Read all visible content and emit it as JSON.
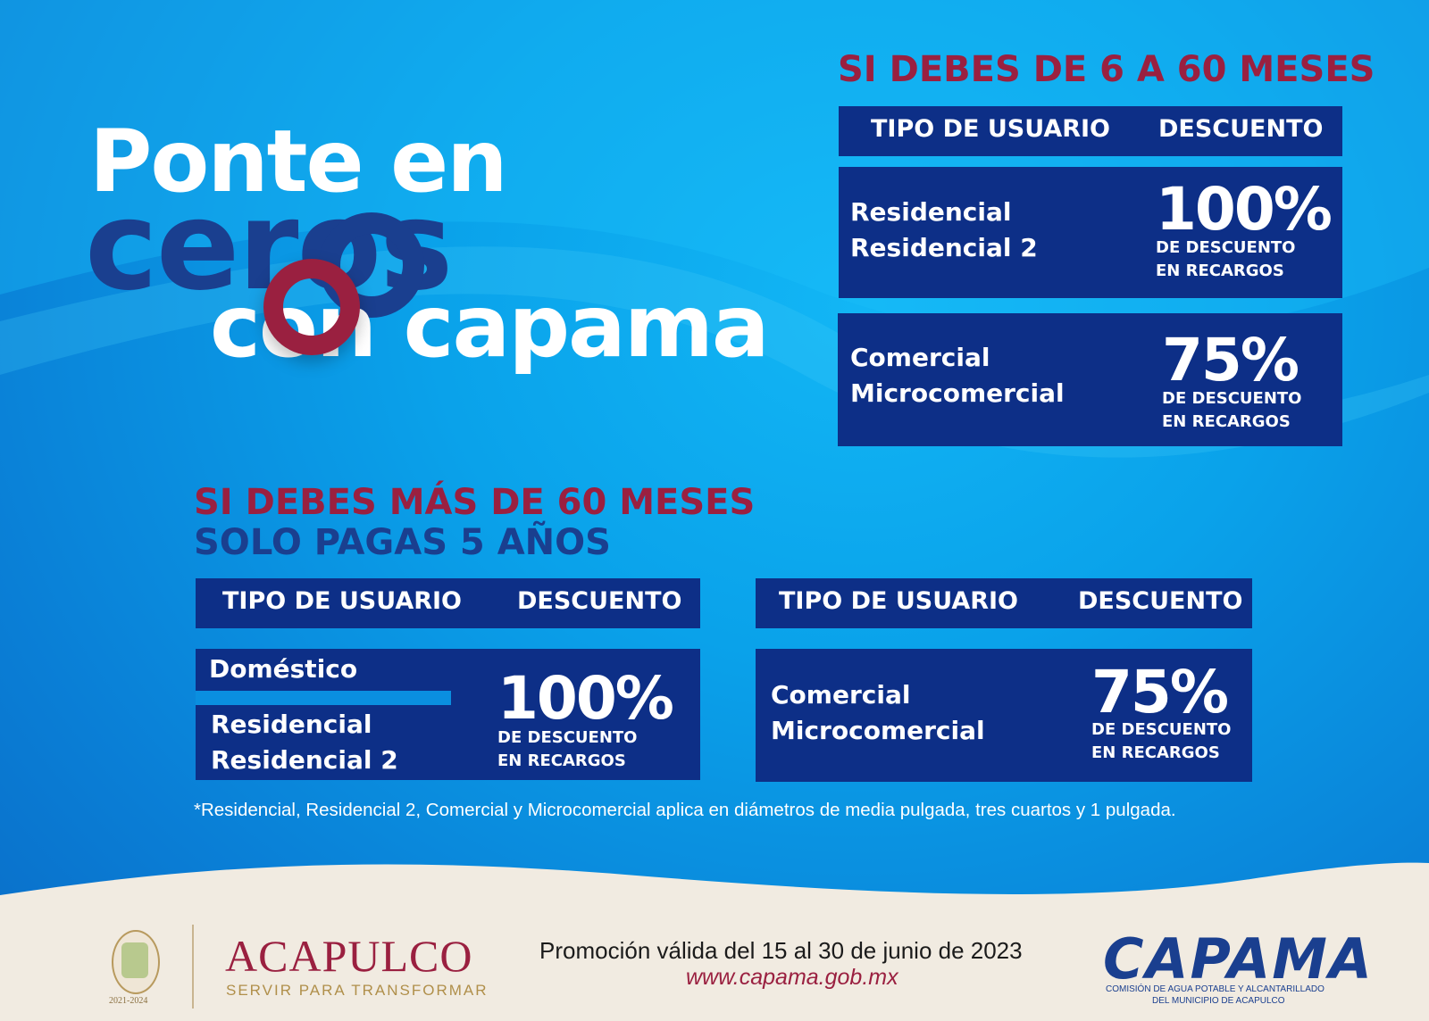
{
  "hero": {
    "line1": "Ponte en",
    "line2": "ceros",
    "line3": "con capama"
  },
  "section_top": {
    "title": "SI DEBES DE 6 A 60 MESES",
    "header": {
      "col1": "TIPO DE USUARIO",
      "col2": "DESCUENTO"
    },
    "rows": [
      {
        "user1": "Residencial",
        "user2": "Residencial 2",
        "percent": "100%",
        "sub1": "DE DESCUENTO",
        "sub2": "EN  RECARGOS"
      },
      {
        "user1": "Comercial",
        "user2": "Microcomercial",
        "percent": "75%",
        "sub1": "DE DESCUENTO",
        "sub2": "EN  RECARGOS"
      }
    ]
  },
  "section_bottom": {
    "title1": "SI DEBES MÁS DE 60 MESES",
    "title2": "SOLO PAGAS 5 AÑOS",
    "left": {
      "header": {
        "col1": "TIPO DE USUARIO",
        "col2": "DESCUENTO"
      },
      "user_top": "Doméstico",
      "user1": "Residencial",
      "user2": "Residencial 2",
      "percent": "100%",
      "sub1": "DE DESCUENTO",
      "sub2": "EN  RECARGOS"
    },
    "right": {
      "header": {
        "col1": "TIPO DE USUARIO",
        "col2": "DESCUENTO"
      },
      "user1": "Comercial",
      "user2": "Microcomercial",
      "percent": "75%",
      "sub1": "DE DESCUENTO",
      "sub2": "EN  RECARGOS"
    },
    "note": "*Residencial, Residencial 2, Comercial y Microcomercial aplica en diámetros de media pulgada, tres cuartos y 1 pulgada."
  },
  "footer": {
    "seal_years": "2021-2024",
    "acapulco": "ACAPULCO",
    "acapulco_tagline": "SERVIR PARA TRANSFORMAR",
    "promo": "Promoción válida del 15 al 30 de junio de 2023",
    "website": "www.capama.gob.mx",
    "capama": "CAPAMA",
    "capama_sub1": "COMISIÓN DE AGUA POTABLE Y ALCANTARILLADO",
    "capama_sub2": "DEL MUNICIPIO DE ACAPULCO"
  },
  "colors": {
    "navy": "#0d2f87",
    "maroon": "#9a2040",
    "brand_blue": "#1a3f8f",
    "sky": "#0aa2ea",
    "cream": "#f1ebe1"
  }
}
